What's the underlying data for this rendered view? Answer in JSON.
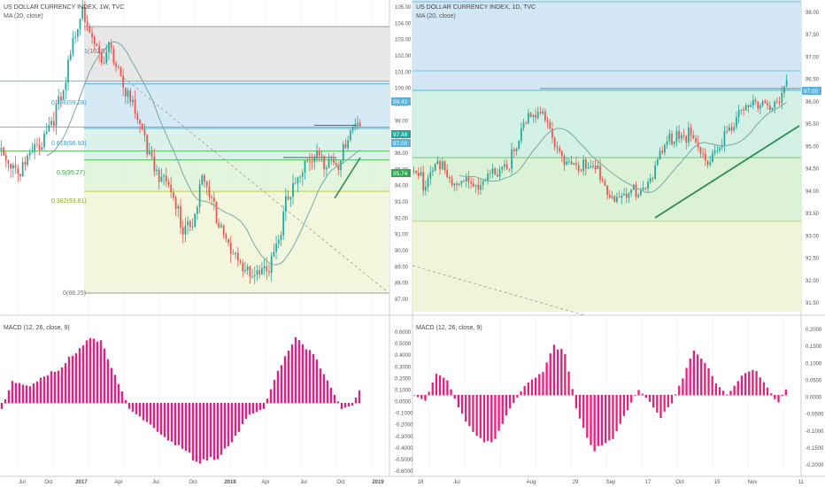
{
  "colors": {
    "up": "#26a69a",
    "down": "#ef5350",
    "ma": "#7aa6a6",
    "macd": "#e91e78",
    "fib_blue_line": "#4fb6e0",
    "fib_green_line": "#53b957",
    "fib_yellow_line": "#b7cf57",
    "trend": "#2e8b57",
    "grid": "#ececec",
    "axis_text": "#555555",
    "badge_blue": "#58b4dc",
    "badge_green": "#34a853"
  },
  "weekly": {
    "header": "US DOLLAR CURRENCY INDEX, 1W, TVC",
    "indicator": "MA (20, close)",
    "macd_label": "MACD (12, 26, close, 9)",
    "price_ticks": [
      "105.00",
      "104.00",
      "103.00",
      "102.00",
      "101.00",
      "100.00",
      "99.00",
      "98.00",
      "97.00",
      "96.00",
      "95.00",
      "94.00",
      "93.00",
      "92.00",
      "91.00",
      "90.00",
      "89.00",
      "88.00",
      "87.00"
    ],
    "macd_ticks": [
      "0.6000",
      "0.5000",
      "0.4000",
      "0.3000",
      "0.2000",
      "0.1000",
      "0.0000",
      "-0.1000",
      "-0.2000",
      "-0.3000",
      "-0.4000",
      "-0.5000",
      "-0.6000"
    ],
    "time_labels": [
      "Jul",
      "Oct",
      "2017",
      "Apr",
      "Jul",
      "Oct",
      "2018",
      "Apr",
      "Jul",
      "Oct",
      "2019"
    ],
    "fib_labels": [
      "1(102.3)",
      "0.786(99.28)",
      "0.618(96.93)",
      "0.5(95.27)",
      "0.382(93.61)",
      "0(88.25)"
    ],
    "badges": [
      "99.42",
      "97.48",
      "97.00",
      "95.74"
    ]
  },
  "daily": {
    "header": "US DOLLAR CURRENCY INDEX, 1D, TVC",
    "indicator": "MA (20, close)",
    "macd_label": "MACD (12, 26, close, 9)",
    "price_ticks": [
      "98.00",
      "97.50",
      "97.00",
      "96.50",
      "96.00",
      "95.50",
      "95.00",
      "94.50",
      "94.00",
      "93.50",
      "93.00",
      "92.50",
      "92.00",
      "91.50"
    ],
    "macd_ticks": [
      "0.2000",
      "0.1500",
      "0.1000",
      "0.0500",
      "0.0000",
      "-0.0500",
      "-0.1000",
      "-0.1500",
      "-0.2000"
    ],
    "time_labels": [
      "18",
      "Jul",
      "Aug",
      "29",
      "Sep",
      "17",
      "Oct",
      "15",
      "Nov",
      "11"
    ],
    "badges": [
      "97.00"
    ]
  },
  "chart_data": [
    {
      "type": "candlestick",
      "title": "US DOLLAR CURRENCY INDEX, 1W, TVC",
      "indicators": [
        "MA (20, close)"
      ],
      "x_range": [
        "2016-06",
        "2019-01"
      ],
      "ylim": [
        87.3,
        105.6
      ],
      "fibonacci_levels": [
        {
          "ratio": 1,
          "price": 102.3
        },
        {
          "ratio": 0.786,
          "price": 99.28
        },
        {
          "ratio": 0.618,
          "price": 96.93
        },
        {
          "ratio": 0.5,
          "price": 95.27
        },
        {
          "ratio": 0.382,
          "price": 93.61
        },
        {
          "ratio": 0,
          "price": 88.25
        }
      ],
      "horizontal_levels": [
        99.42,
        97.0,
        95.74
      ],
      "last_price": 97.48,
      "key_points": [
        {
          "label": "2016-06",
          "price": 95.5
        },
        {
          "label": "2016-08",
          "price": 94.5
        },
        {
          "label": "2016-10",
          "price": 98.5
        },
        {
          "label": "2017-01",
          "price": 103.8
        },
        {
          "label": "2017-03",
          "price": 100.0
        },
        {
          "label": "2017-06",
          "price": 95.5
        },
        {
          "label": "2017-09",
          "price": 91.5
        },
        {
          "label": "2017-10",
          "price": 93.5
        },
        {
          "label": "2018-02",
          "price": 88.5
        },
        {
          "label": "2018-04",
          "price": 89.8
        },
        {
          "label": "2018-06",
          "price": 94.5
        },
        {
          "label": "2018-08",
          "price": 95.5
        },
        {
          "label": "2018-11",
          "price": 97.5
        }
      ],
      "macd_range": [
        -0.6,
        0.65
      ]
    },
    {
      "type": "candlestick",
      "title": "US DOLLAR CURRENCY INDEX, 1D, TVC",
      "indicators": [
        "MA (20, close)"
      ],
      "x_range": [
        "2018-06-18",
        "2018-11-12"
      ],
      "ylim": [
        91.3,
        98.2
      ],
      "horizontal_levels": [
        97.0
      ],
      "key_points": [
        {
          "label": "2018-06-18",
          "price": 94.8
        },
        {
          "label": "2018-07-20",
          "price": 94.2
        },
        {
          "label": "2018-08-15",
          "price": 96.8
        },
        {
          "label": "2018-08-28",
          "price": 94.6
        },
        {
          "label": "2018-09-20",
          "price": 93.9
        },
        {
          "label": "2018-10-09",
          "price": 96.0
        },
        {
          "label": "2018-10-31",
          "price": 97.1
        },
        {
          "label": "2018-11-12",
          "price": 97.5
        }
      ],
      "macd_range": [
        -0.21,
        0.2
      ]
    }
  ]
}
